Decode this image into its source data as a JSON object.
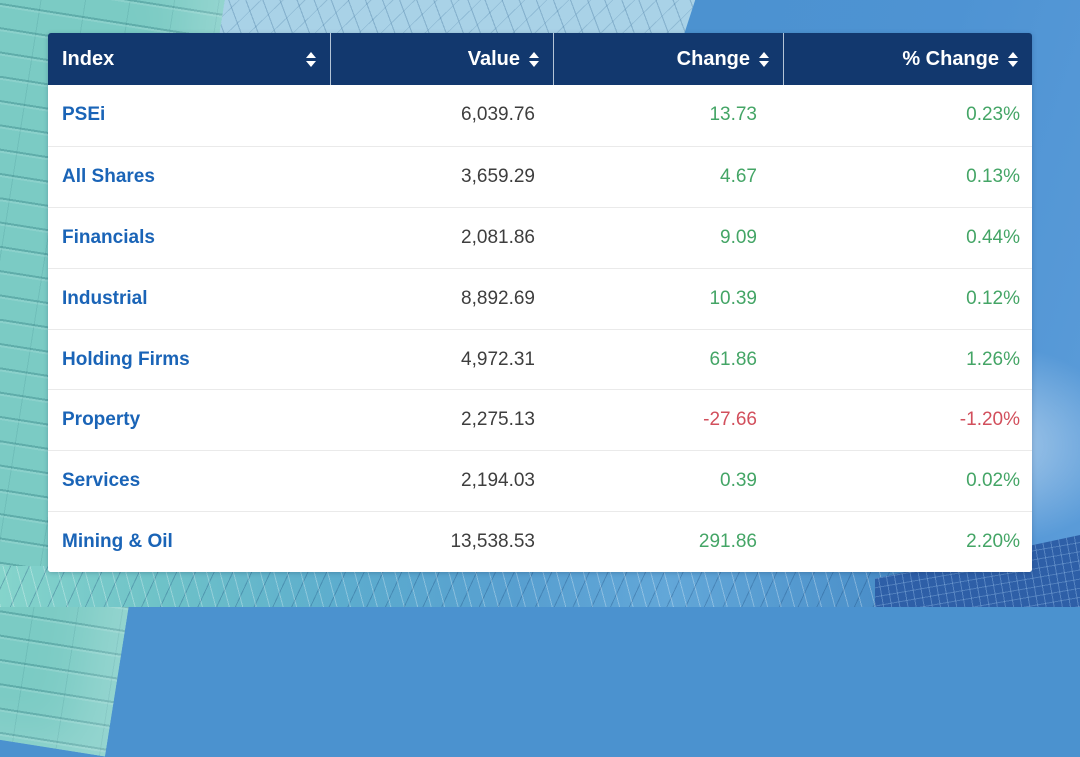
{
  "table": {
    "columns": [
      {
        "id": "index",
        "label": "Index",
        "sortable": true
      },
      {
        "id": "value",
        "label": "Value",
        "sortable": true
      },
      {
        "id": "change",
        "label": "Change",
        "sortable": true
      },
      {
        "id": "pct_change",
        "label": "% Change",
        "sortable": true
      }
    ],
    "rows": [
      {
        "index": "PSEi",
        "value": "6,039.76",
        "change": "13.73",
        "pct_change": "0.23%",
        "trend": "up"
      },
      {
        "index": "All Shares",
        "value": "3,659.29",
        "change": "4.67",
        "pct_change": "0.13%",
        "trend": "up"
      },
      {
        "index": "Financials",
        "value": "2,081.86",
        "change": "9.09",
        "pct_change": "0.44%",
        "trend": "up"
      },
      {
        "index": "Industrial",
        "value": "8,892.69",
        "change": "10.39",
        "pct_change": "0.12%",
        "trend": "up"
      },
      {
        "index": "Holding Firms",
        "value": "4,972.31",
        "change": "61.86",
        "pct_change": "1.26%",
        "trend": "up"
      },
      {
        "index": "Property",
        "value": "2,275.13",
        "change": "-27.66",
        "pct_change": "-1.20%",
        "trend": "down"
      },
      {
        "index": "Services",
        "value": "2,194.03",
        "change": "0.39",
        "pct_change": "0.02%",
        "trend": "up"
      },
      {
        "index": "Mining & Oil",
        "value": "13,538.53",
        "change": "291.86",
        "pct_change": "2.20%",
        "trend": "up"
      }
    ]
  },
  "colors": {
    "header_bg": "#12386e",
    "index_link_blue": "#1a64b7",
    "positive_green": "#44a566",
    "negative_red": "#d24f5c"
  },
  "icons": {
    "sort": "sort-arrows-icon"
  }
}
